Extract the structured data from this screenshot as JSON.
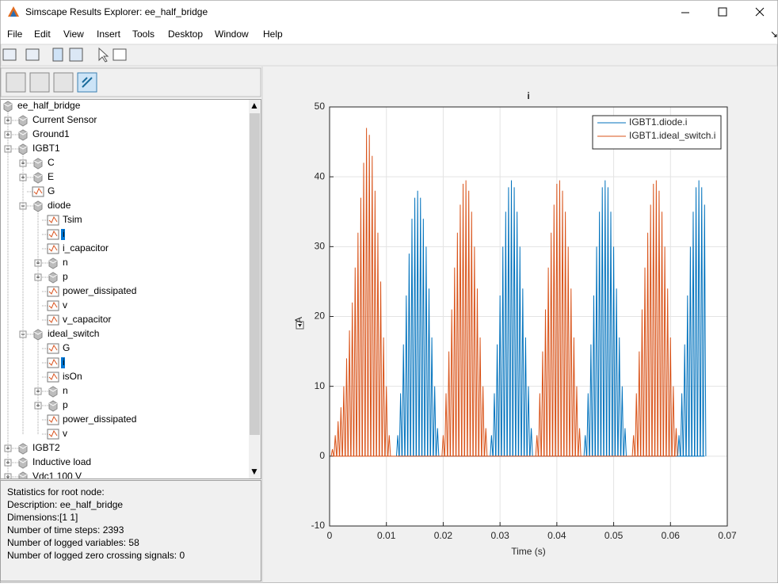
{
  "window": {
    "title": "Simscape Results Explorer: ee_half_bridge"
  },
  "menu": [
    "File",
    "Edit",
    "View",
    "Insert",
    "Tools",
    "Desktop",
    "Window",
    "Help"
  ],
  "tree": {
    "label": "ee_half_bridge",
    "kind": "block",
    "children": [
      {
        "label": "Current Sensor",
        "kind": "block"
      },
      {
        "label": "Ground1",
        "kind": "block"
      },
      {
        "label": "IGBT1",
        "kind": "block",
        "children": [
          {
            "label": "C",
            "kind": "block"
          },
          {
            "label": "E",
            "kind": "block"
          },
          {
            "label": "G",
            "kind": "signal"
          },
          {
            "label": "diode",
            "kind": "block",
            "children": [
              {
                "label": "Tsim",
                "kind": "signal"
              },
              {
                "label": "i",
                "kind": "signal",
                "selected": true
              },
              {
                "label": "i_capacitor",
                "kind": "signal"
              },
              {
                "label": "n",
                "kind": "block"
              },
              {
                "label": "p",
                "kind": "block"
              },
              {
                "label": "power_dissipated",
                "kind": "signal"
              },
              {
                "label": "v",
                "kind": "signal"
              },
              {
                "label": "v_capacitor",
                "kind": "signal"
              }
            ]
          },
          {
            "label": "ideal_switch",
            "kind": "block",
            "children": [
              {
                "label": "G",
                "kind": "signal"
              },
              {
                "label": "i",
                "kind": "signal",
                "selected": true
              },
              {
                "label": "isOn",
                "kind": "signal"
              },
              {
                "label": "n",
                "kind": "block"
              },
              {
                "label": "p",
                "kind": "block"
              },
              {
                "label": "power_dissipated",
                "kind": "signal"
              },
              {
                "label": "v",
                "kind": "signal"
              }
            ]
          }
        ]
      },
      {
        "label": "IGBT2",
        "kind": "block"
      },
      {
        "label": "Inductive load",
        "kind": "block"
      },
      {
        "label": "Vdc1 100 V",
        "kind": "block"
      }
    ]
  },
  "stats": [
    "Statistics for root node:",
    "Description: ee_half_bridge",
    "Dimensions:[1 1]",
    "Number of time steps: 2393",
    "Number of logged variables: 58",
    "Number of logged zero crossing signals: 0"
  ],
  "chart_data": {
    "type": "spike",
    "title": "i",
    "xlabel": "Time (s)",
    "ylabel": "A",
    "xlim": [
      0,
      0.07
    ],
    "ylim": [
      -10,
      50
    ],
    "xticks": [
      0,
      0.01,
      0.02,
      0.03,
      0.04,
      0.05,
      0.06,
      0.07
    ],
    "yticks": [
      -10,
      0,
      10,
      20,
      30,
      40,
      50
    ],
    "grid": true,
    "legend": "top-right",
    "series": [
      {
        "name": "IGBT1.diode.i",
        "color": "#0072bd",
        "x": [
          0.012,
          0.0125,
          0.013,
          0.0135,
          0.014,
          0.0145,
          0.015,
          0.0155,
          0.016,
          0.0165,
          0.017,
          0.0175,
          0.018,
          0.0185,
          0.019,
          0.0285,
          0.029,
          0.0295,
          0.03,
          0.0305,
          0.031,
          0.0315,
          0.032,
          0.0325,
          0.033,
          0.0335,
          0.034,
          0.0345,
          0.035,
          0.0355,
          0.045,
          0.0455,
          0.046,
          0.0465,
          0.047,
          0.0475,
          0.048,
          0.0485,
          0.049,
          0.0495,
          0.05,
          0.0505,
          0.051,
          0.0515,
          0.052,
          0.0615,
          0.062,
          0.0625,
          0.063,
          0.0635,
          0.064,
          0.0645,
          0.065,
          0.0655,
          0.066
        ],
        "values": [
          3,
          9,
          16,
          23,
          29,
          34,
          37,
          38,
          37,
          34,
          30,
          24,
          17,
          10,
          4,
          3,
          9,
          16,
          23,
          30,
          35,
          38.5,
          39.5,
          38.5,
          35,
          30,
          24,
          17,
          10,
          4,
          3,
          9,
          16,
          23,
          30,
          35,
          38.5,
          39.5,
          38.5,
          35,
          30,
          24,
          17,
          10,
          4,
          3,
          9,
          16,
          23,
          30,
          35,
          38.5,
          39.5,
          38.5,
          36
        ]
      },
      {
        "name": "IGBT1.ideal_switch.i",
        "color": "#d95319",
        "x": [
          0.0005,
          0.001,
          0.0015,
          0.002,
          0.0025,
          0.003,
          0.0035,
          0.004,
          0.0045,
          0.005,
          0.0055,
          0.006,
          0.0065,
          0.007,
          0.0075,
          0.008,
          0.0085,
          0.009,
          0.0095,
          0.01,
          0.0105,
          0.02,
          0.0205,
          0.021,
          0.0215,
          0.022,
          0.0225,
          0.023,
          0.0235,
          0.024,
          0.0245,
          0.025,
          0.0255,
          0.026,
          0.0265,
          0.027,
          0.0275,
          0.0365,
          0.037,
          0.0375,
          0.038,
          0.0385,
          0.039,
          0.0395,
          0.04,
          0.0405,
          0.041,
          0.0415,
          0.042,
          0.0425,
          0.043,
          0.0435,
          0.044,
          0.0535,
          0.054,
          0.0545,
          0.055,
          0.0555,
          0.056,
          0.0565,
          0.057,
          0.0575,
          0.058,
          0.0585,
          0.059,
          0.0595,
          0.06,
          0.0605,
          0.061
        ],
        "values": [
          1,
          3,
          5,
          7,
          10,
          14,
          18,
          22,
          27,
          32,
          37,
          42,
          47,
          46,
          43,
          38,
          32,
          25,
          17,
          10,
          3,
          3,
          9,
          15,
          21,
          27,
          32,
          36,
          39,
          39.5,
          38,
          35,
          30,
          24,
          17,
          10,
          4,
          3,
          9,
          15,
          21,
          27,
          32,
          36,
          39,
          39.5,
          38,
          35,
          30,
          24,
          17,
          10,
          4,
          3,
          9,
          15,
          21,
          27,
          32,
          36,
          39,
          39.5,
          38,
          35,
          30,
          24,
          17,
          10,
          4
        ]
      }
    ]
  }
}
